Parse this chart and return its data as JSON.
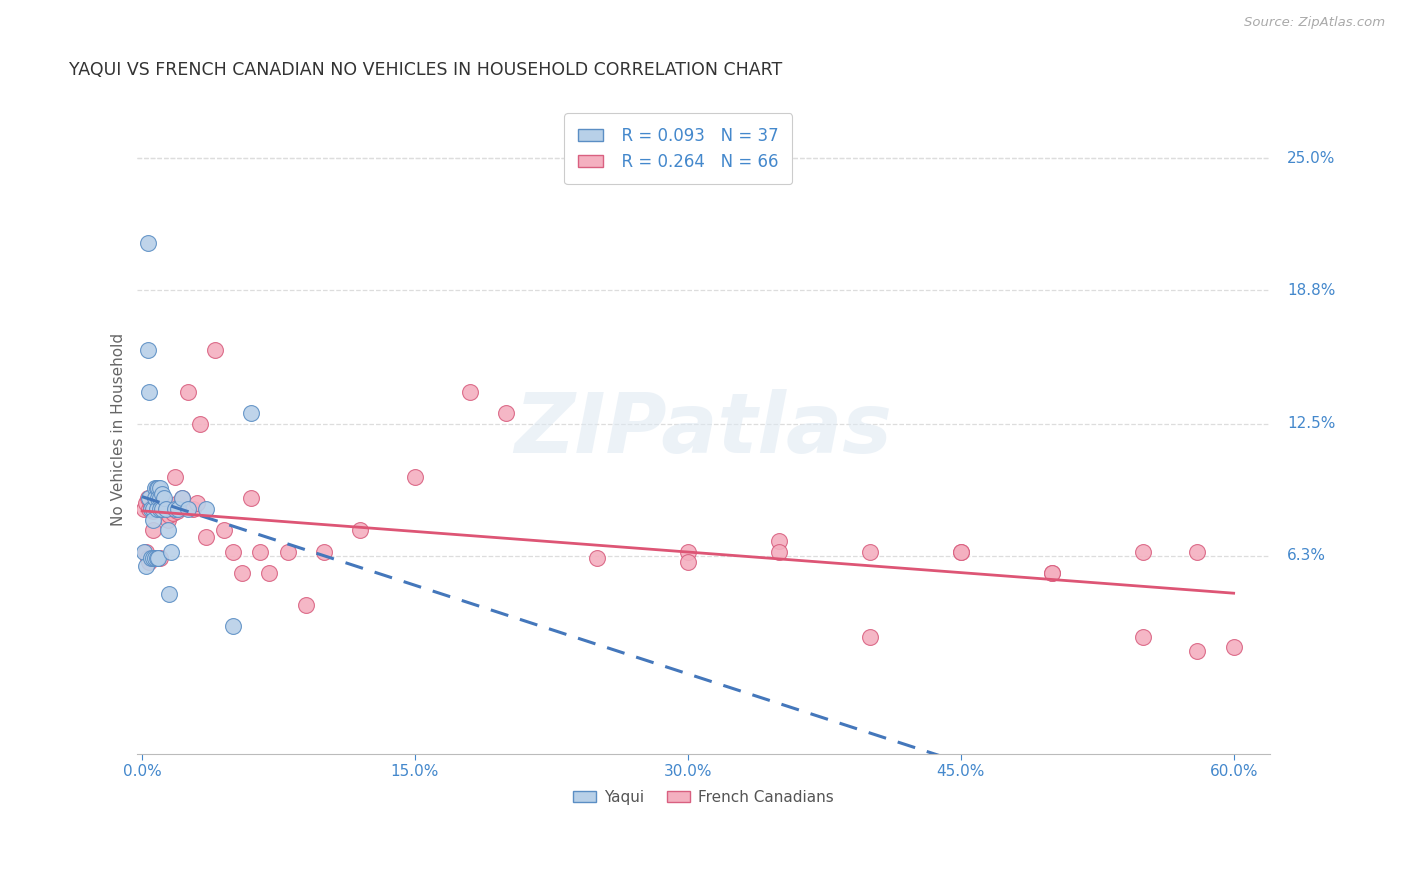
{
  "title": "YAQUI VS FRENCH CANADIAN NO VEHICLES IN HOUSEHOLD CORRELATION CHART",
  "source": "Source: ZipAtlas.com",
  "ylabel": "No Vehicles in Household",
  "ytick_labels": [
    "25.0%",
    "18.8%",
    "12.5%",
    "6.3%"
  ],
  "ytick_values": [
    0.25,
    0.188,
    0.125,
    0.063
  ],
  "top_gridline": 0.25,
  "xlim": [
    -0.003,
    0.62
  ],
  "ylim": [
    -0.03,
    0.275
  ],
  "xtick_positions": [
    0.0,
    0.15,
    0.3,
    0.45,
    0.6
  ],
  "legend_r_yaqui": "R = 0.093",
  "legend_n_yaqui": "N = 37",
  "legend_r_fc": "R = 0.264",
  "legend_n_fc": "N = 66",
  "yaqui_color": "#b8d0e8",
  "yaqui_edge_color": "#5b8ec4",
  "fc_color": "#f4b0c0",
  "fc_edge_color": "#d96080",
  "trend_yaqui_color": "#4477bb",
  "trend_fc_color": "#dd5575",
  "axis_label_color": "#4488cc",
  "grid_color": "#dddddd",
  "title_color": "#333333",
  "yaqui_x": [
    0.001,
    0.002,
    0.003,
    0.003,
    0.004,
    0.004,
    0.005,
    0.005,
    0.006,
    0.006,
    0.006,
    0.007,
    0.007,
    0.007,
    0.008,
    0.008,
    0.008,
    0.009,
    0.009,
    0.009,
    0.01,
    0.01,
    0.01,
    0.011,
    0.011,
    0.012,
    0.013,
    0.014,
    0.015,
    0.016,
    0.018,
    0.02,
    0.022,
    0.025,
    0.035,
    0.05,
    0.06
  ],
  "yaqui_y": [
    0.065,
    0.058,
    0.21,
    0.16,
    0.14,
    0.09,
    0.085,
    0.062,
    0.085,
    0.08,
    0.062,
    0.095,
    0.09,
    0.062,
    0.095,
    0.085,
    0.062,
    0.095,
    0.09,
    0.062,
    0.095,
    0.09,
    0.085,
    0.092,
    0.085,
    0.09,
    0.085,
    0.075,
    0.045,
    0.065,
    0.085,
    0.085,
    0.09,
    0.085,
    0.085,
    0.03,
    0.13
  ],
  "fc_x": [
    0.001,
    0.002,
    0.002,
    0.003,
    0.003,
    0.004,
    0.004,
    0.005,
    0.005,
    0.006,
    0.006,
    0.006,
    0.007,
    0.007,
    0.008,
    0.008,
    0.009,
    0.009,
    0.01,
    0.01,
    0.011,
    0.012,
    0.013,
    0.014,
    0.015,
    0.016,
    0.017,
    0.018,
    0.019,
    0.02,
    0.022,
    0.025,
    0.028,
    0.03,
    0.032,
    0.035,
    0.04,
    0.045,
    0.05,
    0.055,
    0.06,
    0.065,
    0.07,
    0.08,
    0.09,
    0.1,
    0.12,
    0.15,
    0.18,
    0.2,
    0.25,
    0.3,
    0.35,
    0.4,
    0.45,
    0.5,
    0.55,
    0.58,
    0.3,
    0.35,
    0.4,
    0.45,
    0.5,
    0.55,
    0.58,
    0.6
  ],
  "fc_y": [
    0.085,
    0.088,
    0.065,
    0.09,
    0.062,
    0.085,
    0.06,
    0.086,
    0.062,
    0.084,
    0.075,
    0.062,
    0.085,
    0.062,
    0.086,
    0.062,
    0.088,
    0.062,
    0.085,
    0.062,
    0.086,
    0.084,
    0.088,
    0.08,
    0.082,
    0.085,
    0.083,
    0.1,
    0.084,
    0.088,
    0.09,
    0.14,
    0.085,
    0.088,
    0.125,
    0.072,
    0.16,
    0.075,
    0.065,
    0.055,
    0.09,
    0.065,
    0.055,
    0.065,
    0.04,
    0.065,
    0.075,
    0.1,
    0.14,
    0.13,
    0.062,
    0.065,
    0.07,
    0.065,
    0.065,
    0.055,
    0.025,
    0.018,
    0.06,
    0.065,
    0.025,
    0.065,
    0.055,
    0.065,
    0.065,
    0.02
  ]
}
